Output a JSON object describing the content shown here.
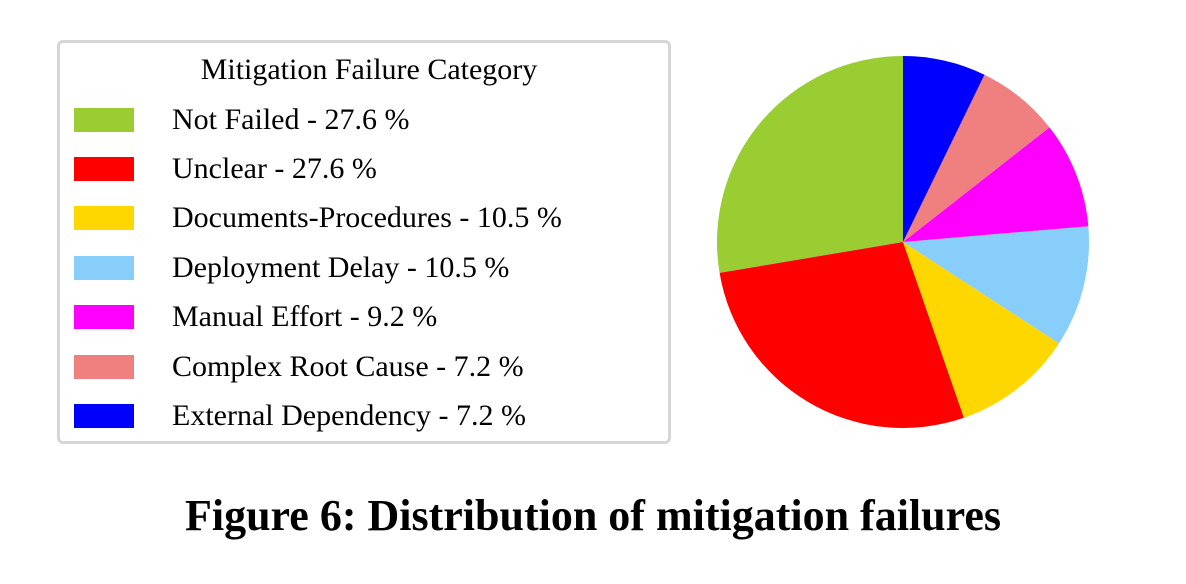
{
  "chart_data": {
    "type": "pie",
    "title": "Figure 6: Distribution of mitigation failures",
    "legend_title": "Mitigation Failure Category",
    "legend_position": "left",
    "categories": [
      "Not Failed",
      "Unclear",
      "Documents-Procedures",
      "Deployment Delay",
      "Manual Effort",
      "Complex Root Cause",
      "External Dependency"
    ],
    "values": [
      27.6,
      27.6,
      10.5,
      10.5,
      9.2,
      7.2,
      7.2
    ],
    "colors": [
      "#9ACD32",
      "#FF0000",
      "#FFD700",
      "#87CEFA",
      "#FF00FF",
      "#F08080",
      "#0000FF"
    ],
    "start_angle": "top (90deg)",
    "direction": "counterclockwise"
  },
  "legend": {
    "title": "Mitigation Failure Category",
    "items": [
      {
        "label": "Not Failed - 27.6 %",
        "color": "#9ACD32"
      },
      {
        "label": "Unclear - 27.6 %",
        "color": "#FF0000"
      },
      {
        "label": "Documents-Procedures - 10.5 %",
        "color": "#FFD700"
      },
      {
        "label": "Deployment Delay - 10.5 %",
        "color": "#87CEFA"
      },
      {
        "label": "Manual Effort - 9.2 %",
        "color": "#FF00FF"
      },
      {
        "label": "Complex Root Cause - 7.2 %",
        "color": "#F08080"
      },
      {
        "label": "External Dependency - 7.2 %",
        "color": "#0000FF"
      }
    ]
  },
  "caption": "Figure 6: Distribution of mitigation failures"
}
